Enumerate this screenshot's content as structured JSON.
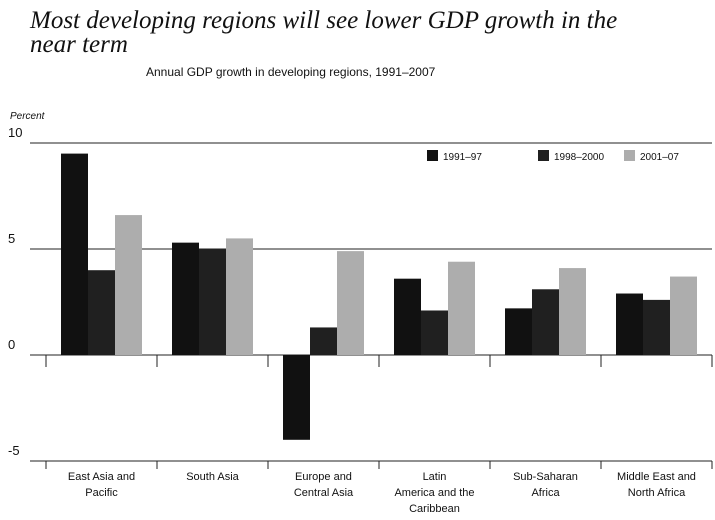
{
  "chart_data": {
    "type": "bar",
    "title": [
      "Most developing regions will see lower GDP growth in the",
      "near term"
    ],
    "subtitle": "Annual GDP growth in developing regions, 1991–2007",
    "ylabel": "Percent",
    "categories": [
      [
        "East Asia and",
        "Pacific"
      ],
      [
        "South Asia"
      ],
      [
        "Europe and",
        "Central Asia"
      ],
      [
        "Latin",
        "America and the",
        "Caribbean"
      ],
      [
        "Sub-Saharan",
        "Africa"
      ],
      [
        "Middle East and",
        "North Africa"
      ]
    ],
    "series": [
      {
        "name": "1991–97",
        "color": "#111111",
        "values": [
          9.5,
          5.3,
          -4.0,
          3.6,
          2.2,
          2.9
        ]
      },
      {
        "name": "1998–2000",
        "color": "#202020",
        "values": [
          4.0,
          5.0,
          1.3,
          2.1,
          3.1,
          2.6
        ]
      },
      {
        "name": "2001–07",
        "color": "#adadad",
        "values": [
          6.6,
          5.5,
          4.9,
          4.4,
          4.1,
          3.7
        ]
      }
    ],
    "ylim": [
      -5,
      10
    ],
    "yticks": [
      -5,
      0,
      5,
      10
    ],
    "grid": true,
    "legend": "top-right"
  }
}
